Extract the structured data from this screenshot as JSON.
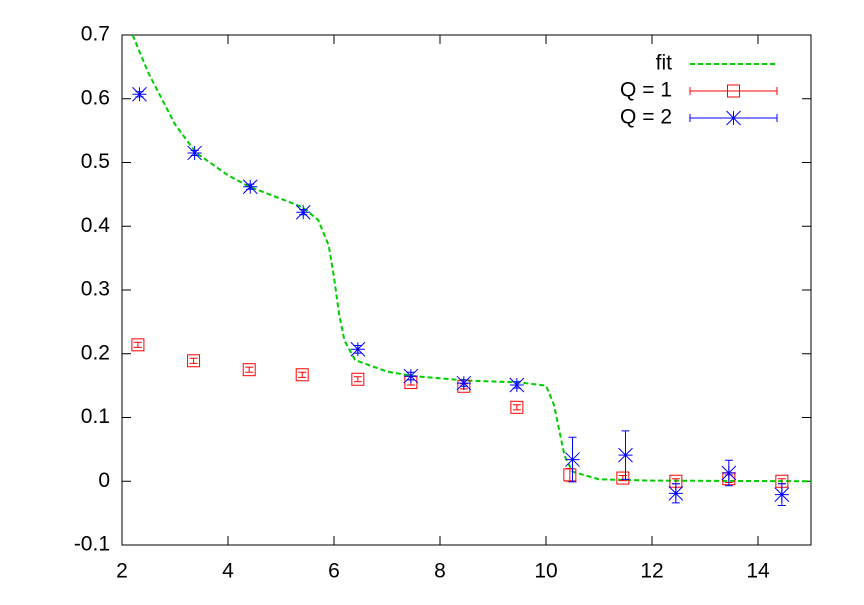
{
  "chart_data": {
    "type": "scatter",
    "xlim": [
      2,
      15
    ],
    "ylim": [
      -0.1,
      0.7
    ],
    "xticks": [
      2,
      4,
      6,
      8,
      10,
      12,
      14
    ],
    "yticks": [
      -0.1,
      0,
      0.1,
      0.2,
      0.3,
      0.4,
      0.5,
      0.6,
      0.7
    ],
    "legend": "upper right",
    "series": [
      {
        "name": "fit",
        "color": "#00cc00",
        "style": "dashed-line",
        "x": [
          2.2,
          2.5,
          3,
          3.4,
          4,
          4.4,
          5,
          5.4,
          5.7,
          5.9,
          6.0,
          6.1,
          6.2,
          6.4,
          7,
          7.5,
          8.5,
          9.5,
          10,
          10.15,
          10.25,
          10.35,
          10.5,
          11,
          12,
          15
        ],
        "values": [
          0.7,
          0.64,
          0.56,
          0.515,
          0.48,
          0.462,
          0.443,
          0.43,
          0.41,
          0.37,
          0.32,
          0.26,
          0.22,
          0.19,
          0.172,
          0.165,
          0.158,
          0.155,
          0.15,
          0.12,
          0.08,
          0.04,
          0.015,
          0.003,
          0.001,
          0
        ]
      },
      {
        "name": "Q = 1",
        "color": "#ff0000",
        "style": "square",
        "x": [
          2.3,
          3.35,
          4.4,
          5.4,
          6.45,
          7.45,
          8.45,
          9.45,
          10.45,
          11.45,
          12.45,
          13.45,
          14.45
        ],
        "values": [
          0.214,
          0.189,
          0.175,
          0.167,
          0.16,
          0.155,
          0.149,
          0.116,
          0.01,
          0.005,
          0.0,
          0.004,
          0.0
        ],
        "errors": [
          0.004,
          0.004,
          0.004,
          0.004,
          0.004,
          0.004,
          0.004,
          0.004,
          0.01,
          0.004,
          0.004,
          0.006,
          0.004
        ]
      },
      {
        "name": "Q = 2",
        "color": "#0000ff",
        "style": "star",
        "x": [
          2.33,
          3.37,
          4.42,
          5.42,
          6.45,
          7.45,
          8.45,
          9.45,
          10.5,
          11.5,
          12.45,
          13.45,
          14.45
        ],
        "values": [
          0.607,
          0.515,
          0.462,
          0.422,
          0.207,
          0.165,
          0.154,
          0.151,
          0.034,
          0.041,
          -0.019,
          0.013,
          -0.021
        ],
        "errors": [
          0.004,
          0.004,
          0.004,
          0.004,
          0.006,
          0.006,
          0.005,
          0.005,
          0.035,
          0.038,
          0.015,
          0.02,
          0.017
        ]
      }
    ]
  }
}
